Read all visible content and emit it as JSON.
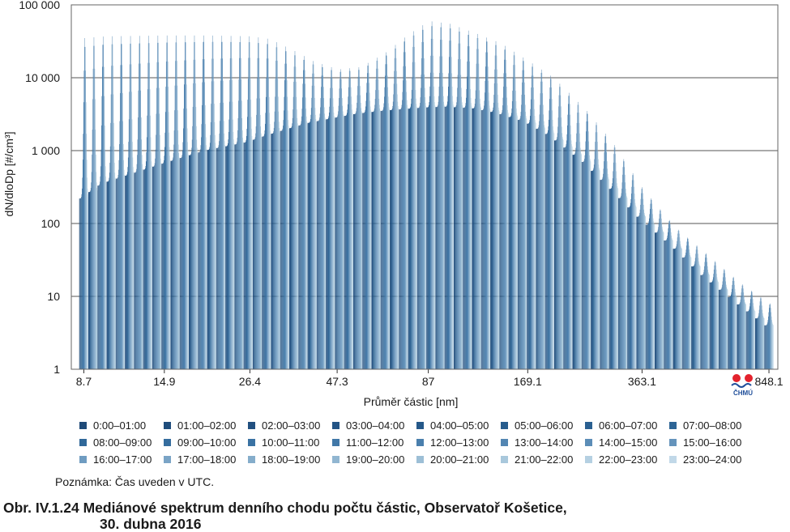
{
  "chart_data": {
    "type": "bar",
    "title": "",
    "xlabel": "Průměr částic [nm]",
    "ylabel": "dN/dloDp [#/cm³]",
    "yscale": "log",
    "ylim": [
      1,
      100000
    ],
    "xscale": "log",
    "xlim": [
      8.0,
      900.0
    ],
    "grid": true,
    "x_tick_labels": [
      "8.7",
      "14.9",
      "26.4",
      "47.3",
      "87",
      "169.1",
      "363.1",
      "848.1"
    ],
    "x_tick_values": [
      8.7,
      14.9,
      26.4,
      47.3,
      87,
      169.1,
      363.1,
      848.1
    ],
    "y_tick_labels": [
      "1",
      "10",
      "100",
      "1 000",
      "10 000",
      "100 000"
    ],
    "y_tick_values": [
      1,
      10,
      100,
      1000,
      10000,
      100000
    ],
    "envelope_profiles": {
      "x": [
        8.7,
        10,
        14.9,
        20,
        26.4,
        30,
        35,
        40,
        47.3,
        55,
        65,
        75,
        87,
        100,
        120,
        140,
        169.1,
        200,
        250,
        300,
        363.1,
        450,
        550,
        700,
        848.1
      ],
      "night_min": [
        220,
        350,
        650,
        1000,
        1300,
        1600,
        2000,
        2400,
        2800,
        3200,
        3500,
        3700,
        3900,
        4000,
        3800,
        3300,
        2500,
        1600,
        700,
        300,
        120,
        50,
        20,
        8,
        4
      ],
      "afternoon_max": [
        35000,
        37000,
        38000,
        38000,
        37000,
        34000,
        24000,
        17000,
        13000,
        14000,
        22000,
        38000,
        60000,
        55000,
        40000,
        30000,
        17000,
        10000,
        3500,
        1200,
        300,
        90,
        40,
        15,
        8
      ]
    },
    "series": [
      {
        "name": "0:00–01:00"
      },
      {
        "name": "01:00–02:00"
      },
      {
        "name": "02:00–03:00"
      },
      {
        "name": "03:00–04:00"
      },
      {
        "name": "04:00–05:00"
      },
      {
        "name": "05:00–06:00"
      },
      {
        "name": "06:00–07:00"
      },
      {
        "name": "07:00–08:00"
      },
      {
        "name": "08:00–09:00"
      },
      {
        "name": "09:00–10:00"
      },
      {
        "name": "10:00–11:00"
      },
      {
        "name": "11:00–12:00"
      },
      {
        "name": "12:00–13:00"
      },
      {
        "name": "13:00–14:00"
      },
      {
        "name": "14:00–15:00"
      },
      {
        "name": "15:00–16:00"
      },
      {
        "name": "16:00–17:00"
      },
      {
        "name": "17:00–18:00"
      },
      {
        "name": "18:00–19:00"
      },
      {
        "name": "19:00–20:00"
      },
      {
        "name": "20:00–21:00"
      },
      {
        "name": "21:00–22:00"
      },
      {
        "name": "22:00–23:00"
      },
      {
        "name": "23:00–24:00"
      }
    ],
    "legend_position": "bottom"
  },
  "colors": {
    "series": [
      "#1f4a78",
      "#1f4d7c",
      "#215080",
      "#235485",
      "#255889",
      "#275c8d",
      "#2a6091",
      "#2d6495",
      "#306899",
      "#356d9e",
      "#3a72a3",
      "#4178a8",
      "#4a7fad",
      "#5386b2",
      "#5c8db7",
      "#6594bc",
      "#6f9cc1",
      "#7aa4c6",
      "#85adcb",
      "#91b6d1",
      "#9dbfd6",
      "#a9c8dc",
      "#b5d0e2",
      "#c1d8e8"
    ],
    "grid": "#555555",
    "logo_red": "#e3232d",
    "logo_blue": "#1f4e9a"
  },
  "note": "Poznámka: Čas uveden v UTC.",
  "caption": {
    "line1": "Obr. IV.1.24  Mediánové spektrum denního chodu počtu částic, Observatoř Košetice,",
    "line2": "30. dubna 2016"
  },
  "logo": {
    "text": "ČHMÚ",
    "icon": "chmu-logo-icon"
  }
}
